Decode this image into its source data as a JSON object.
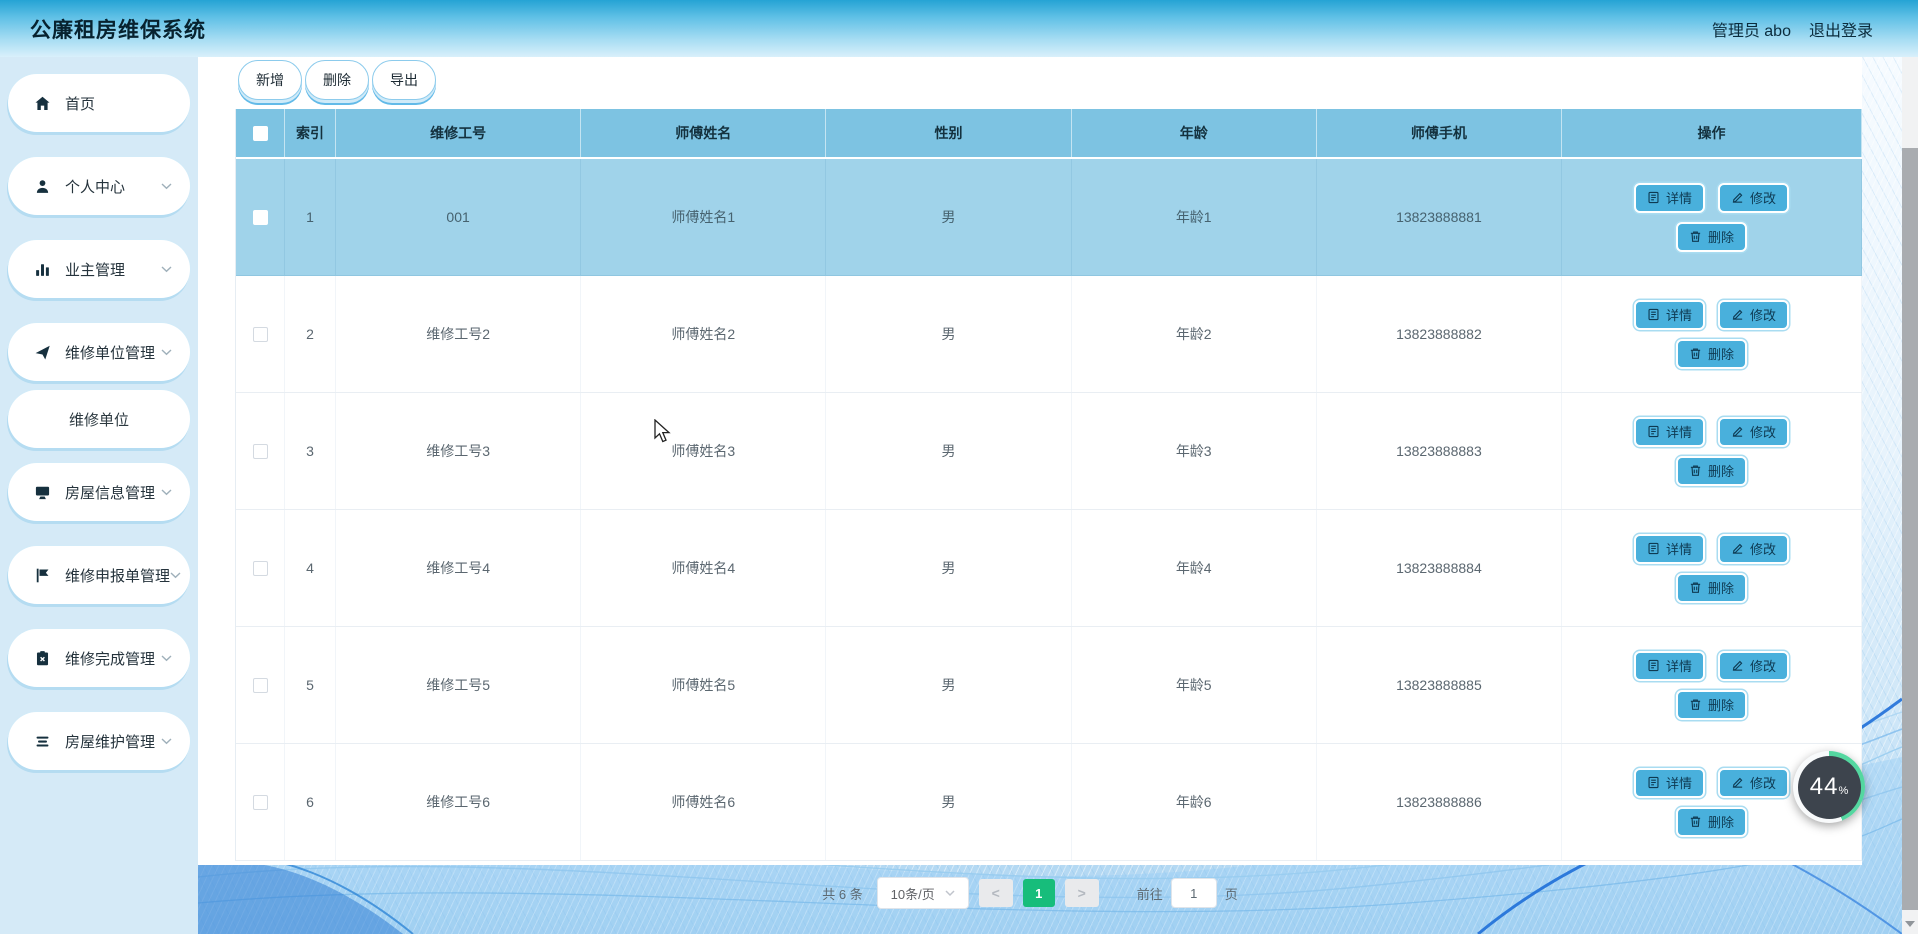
{
  "header": {
    "title": "公廉租房维保系统",
    "user": "管理员 abo",
    "logout": "退出登录"
  },
  "sidebar": {
    "items": [
      {
        "label": "首页",
        "icon": "home-icon",
        "chevron": false,
        "sub": false
      },
      {
        "label": "个人中心",
        "icon": "user-icon",
        "chevron": true,
        "sub": false
      },
      {
        "label": "业主管理",
        "icon": "bar-chart-icon",
        "chevron": true,
        "sub": false
      },
      {
        "label": "维修单位管理",
        "icon": "send-icon",
        "chevron": true,
        "sub": false
      },
      {
        "label": "维修单位",
        "icon": "",
        "chevron": false,
        "sub": true,
        "active": true
      },
      {
        "label": "房屋信息管理",
        "icon": "monitor-icon",
        "chevron": true,
        "sub": false
      },
      {
        "label": "维修申报单管理",
        "icon": "flag-icon",
        "chevron": true,
        "sub": false
      },
      {
        "label": "维修完成管理",
        "icon": "clipboard-x-icon",
        "chevron": true,
        "sub": false
      },
      {
        "label": "房屋维护管理",
        "icon": "list-icon",
        "chevron": true,
        "sub": false
      }
    ]
  },
  "toolbar": {
    "add_label": "新增",
    "delete_label": "删除",
    "export_label": "导出"
  },
  "table": {
    "columns": [
      "索引",
      "维修工号",
      "师傅姓名",
      "性别",
      "年龄",
      "师傅手机",
      "操作"
    ],
    "actions": {
      "detail": "详情",
      "edit": "修改",
      "remove": "删除"
    },
    "rows": [
      {
        "index": "1",
        "worker_no": "001",
        "name": "师傅姓名1",
        "gender": "男",
        "age": "年龄1",
        "phone": "13823888881",
        "selected": true
      },
      {
        "index": "2",
        "worker_no": "维修工号2",
        "name": "师傅姓名2",
        "gender": "男",
        "age": "年龄2",
        "phone": "13823888882",
        "selected": false
      },
      {
        "index": "3",
        "worker_no": "维修工号3",
        "name": "师傅姓名3",
        "gender": "男",
        "age": "年龄3",
        "phone": "13823888883",
        "selected": false
      },
      {
        "index": "4",
        "worker_no": "维修工号4",
        "name": "师傅姓名4",
        "gender": "男",
        "age": "年龄4",
        "phone": "13823888884",
        "selected": false
      },
      {
        "index": "5",
        "worker_no": "维修工号5",
        "name": "师傅姓名5",
        "gender": "男",
        "age": "年龄5",
        "phone": "13823888885",
        "selected": false
      },
      {
        "index": "6",
        "worker_no": "维修工号6",
        "name": "师傅姓名6",
        "gender": "男",
        "age": "年龄6",
        "phone": "13823888886",
        "selected": false
      }
    ]
  },
  "pagination": {
    "total_label": "共 6 条",
    "page_size_label": "10条/页",
    "prev_icon": "<",
    "next_icon": ">",
    "current_page": "1",
    "goto_label": "前往",
    "goto_value": "1",
    "unit_label": "页"
  },
  "progress_badge": {
    "value": "44",
    "unit": "%"
  },
  "colors": {
    "header_gradient_top": "#25a3d4",
    "sidebar_bg": "#d5eaf7",
    "table_header_bg": "#7dc3e2",
    "selected_row_bg": "#a0d3ea",
    "action_button_bg": "#49b0dc",
    "active_page_bg": "#17bd7b"
  }
}
